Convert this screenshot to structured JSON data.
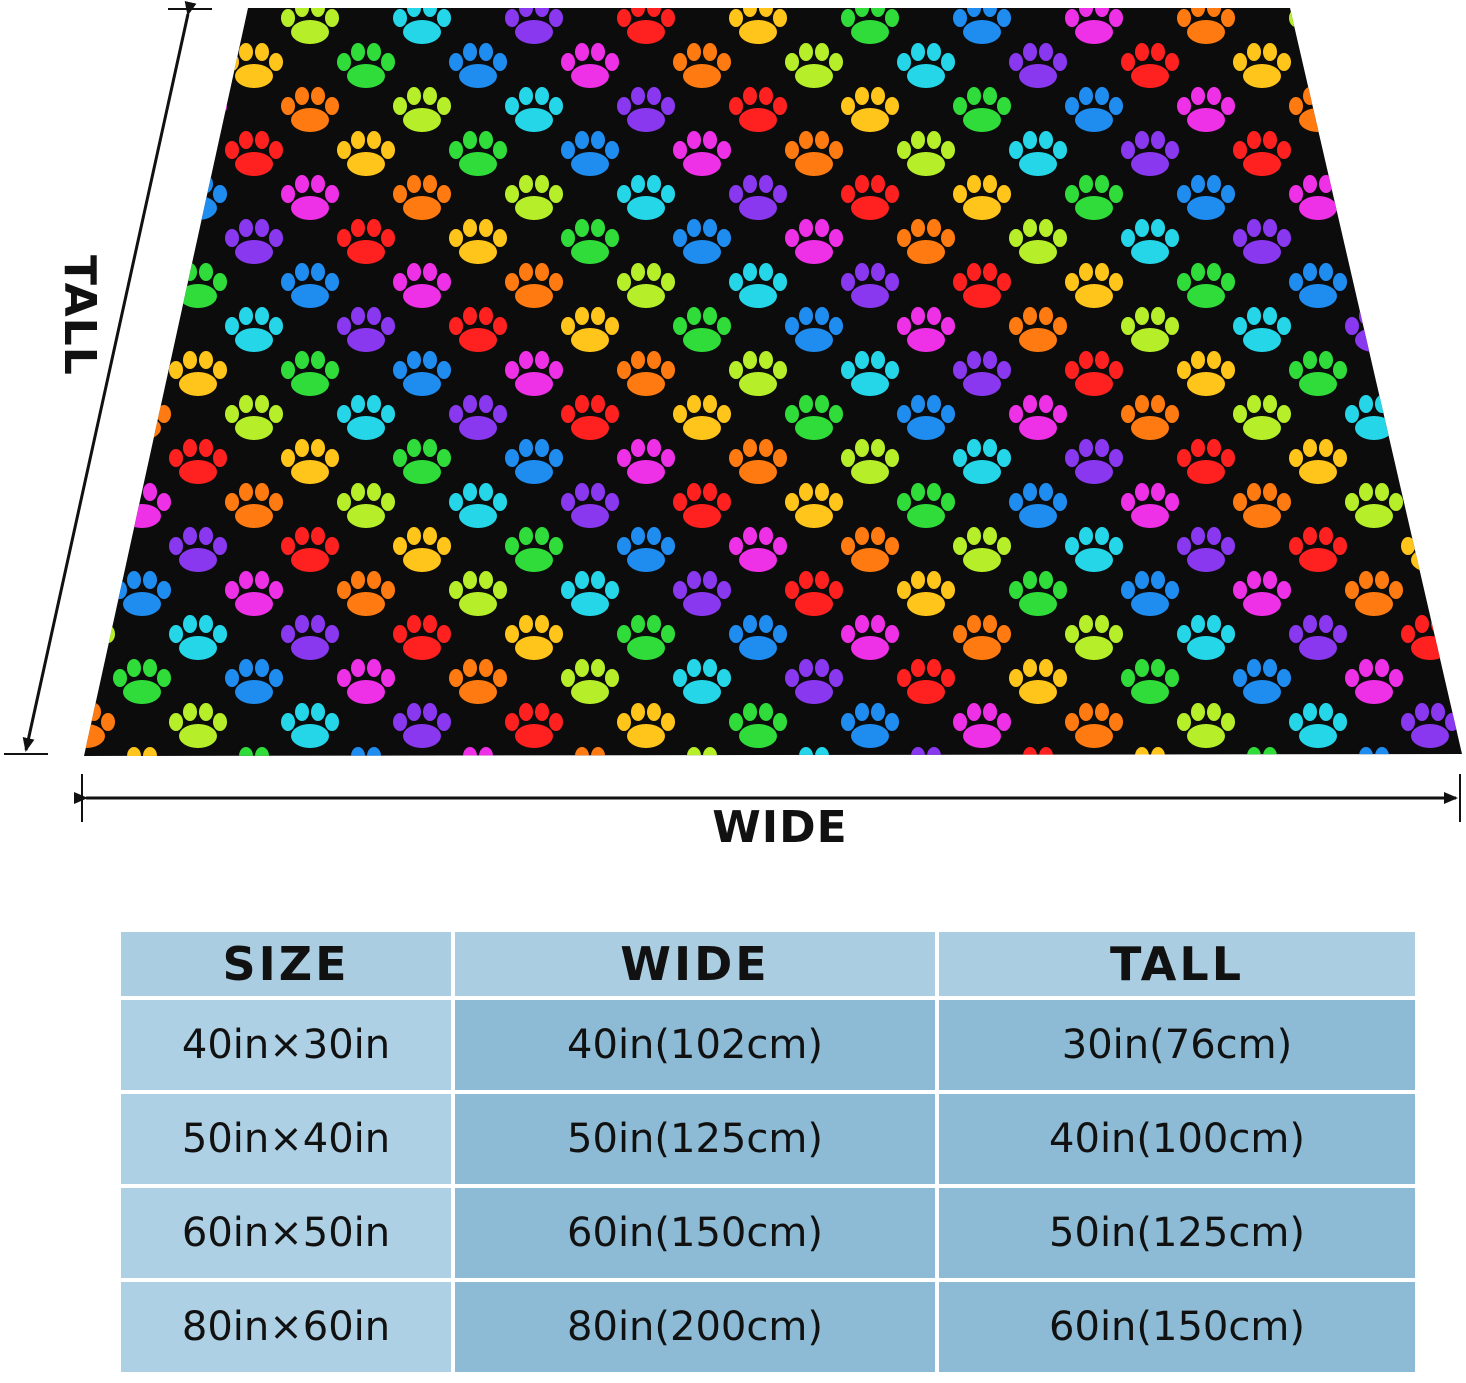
{
  "diagram": {
    "wide_label": "WIDE",
    "tall_label": "TALL",
    "blanket_background": "#0c0c0c",
    "paw_colors": [
      "#ff2020",
      "#ff7a10",
      "#ffc51a",
      "#b6ef2a",
      "#2fdc3a",
      "#25d6e8",
      "#1f8cf0",
      "#8a38f0",
      "#ee30e6"
    ]
  },
  "table": {
    "headers": [
      "SIZE",
      "WIDE",
      "TALL"
    ],
    "rows": [
      [
        "40in×30in",
        "40in(102cm)",
        "30in(76cm)"
      ],
      [
        "50in×40in",
        "50in(125cm)",
        "40in(100cm)"
      ],
      [
        "60in×50in",
        "60in(150cm)",
        "50in(125cm)"
      ],
      [
        "80in×60in",
        "80in(200cm)",
        "60in(150cm)"
      ]
    ]
  }
}
